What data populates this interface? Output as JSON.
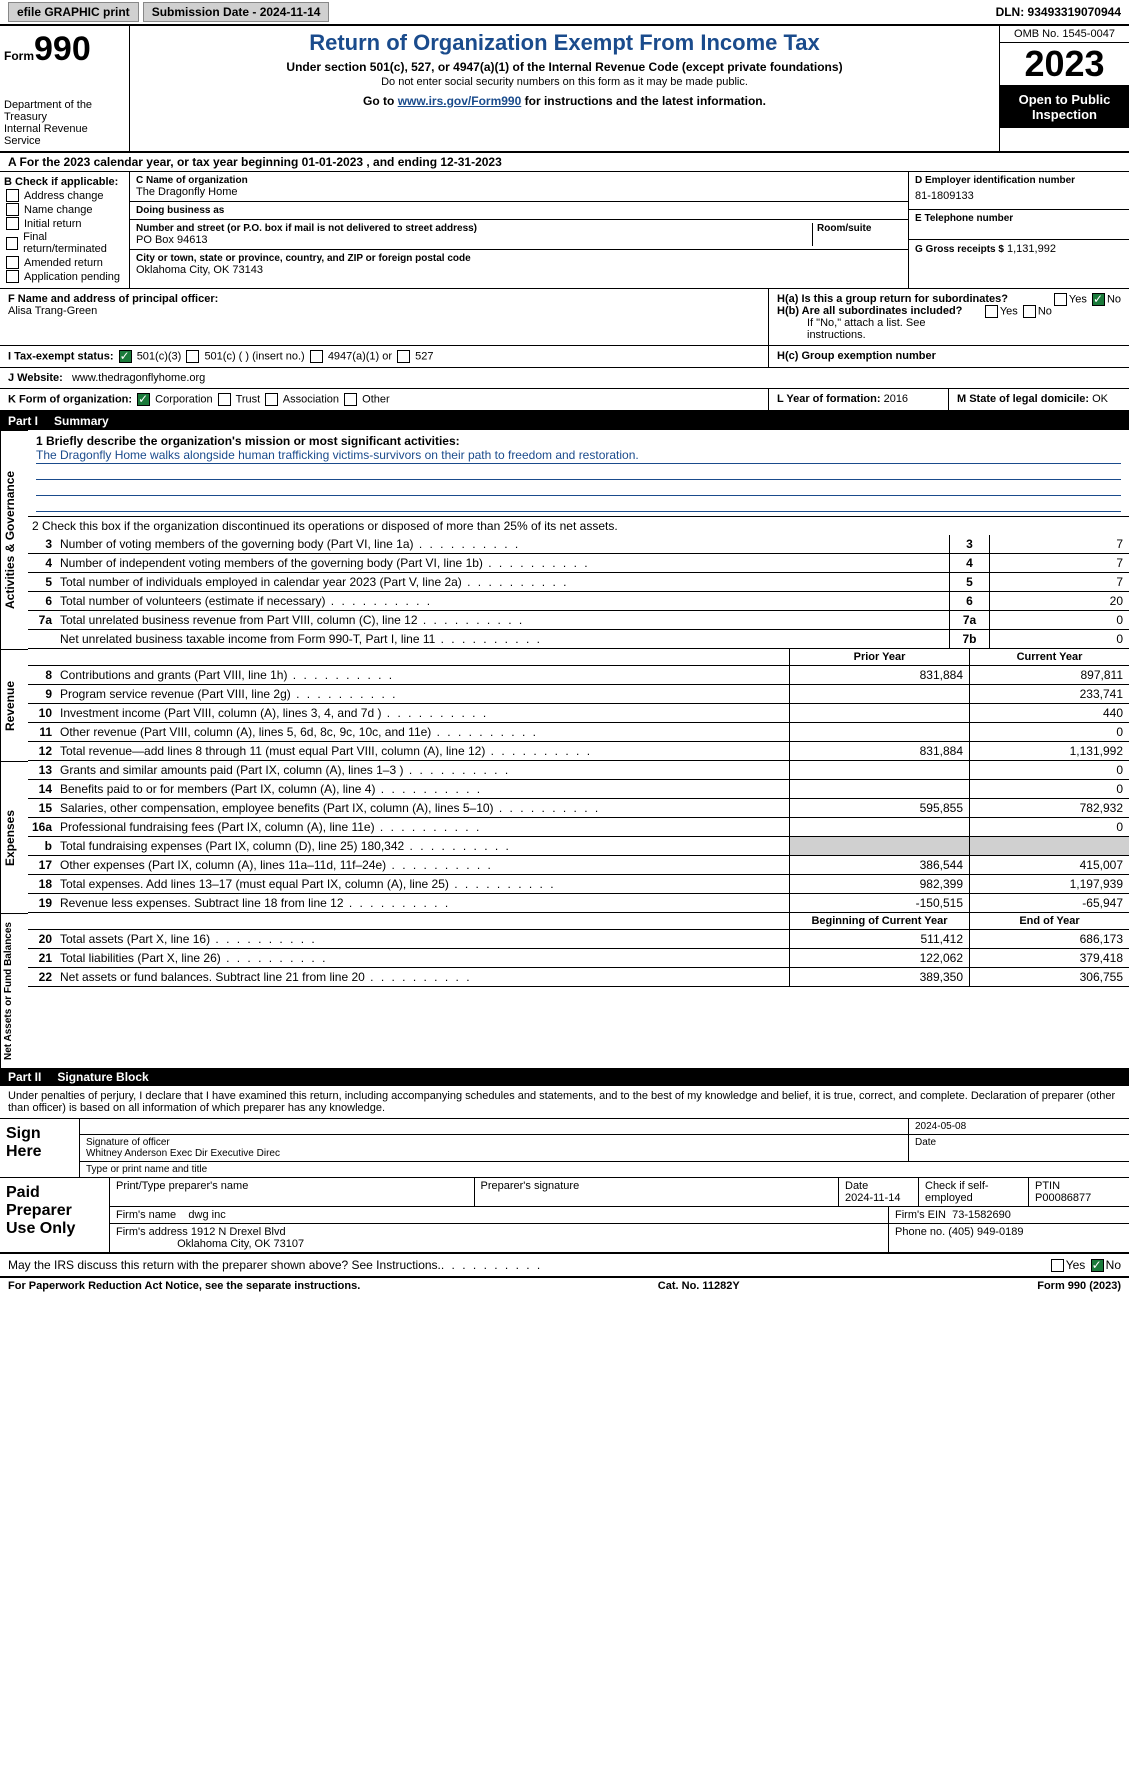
{
  "topbar": {
    "efile": "efile GRAPHIC print",
    "submission": "Submission Date - 2024-11-14",
    "dln": "DLN: 93493319070944"
  },
  "header": {
    "form_prefix": "Form",
    "form_number": "990",
    "dept": "Department of the Treasury\nInternal Revenue Service",
    "title": "Return of Organization Exempt From Income Tax",
    "subtitle": "Under section 501(c), 527, or 4947(a)(1) of the Internal Revenue Code (except private foundations)",
    "note": "Do not enter social security numbers on this form as it may be made public.",
    "goto_prefix": "Go to ",
    "goto_link": "www.irs.gov/Form990",
    "goto_suffix": " for instructions and the latest information.",
    "omb": "OMB No. 1545-0047",
    "year": "2023",
    "open": "Open to Public Inspection"
  },
  "section_a": {
    "text": "A  For the 2023 calendar year, or tax year beginning 01-01-2023    , and ending 12-31-2023"
  },
  "col_b": {
    "header": "B Check if applicable:",
    "items": [
      "Address change",
      "Name change",
      "Initial return",
      "Final return/terminated",
      "Amended return",
      "Application pending"
    ]
  },
  "col_c": {
    "name_lbl": "C Name of organization",
    "name": "The Dragonfly Home",
    "dba_lbl": "Doing business as",
    "dba": "",
    "street_lbl": "Number and street (or P.O. box if mail is not delivered to street address)",
    "room_lbl": "Room/suite",
    "street": "PO Box 94613",
    "city_lbl": "City or town, state or province, country, and ZIP or foreign postal code",
    "city": "Oklahoma City, OK   73143"
  },
  "col_d": {
    "ein_lbl": "D Employer identification number",
    "ein": "81-1809133",
    "phone_lbl": "E Telephone number",
    "phone": "",
    "gross_lbl": "G Gross receipts $",
    "gross": "1,131,992"
  },
  "block_f": {
    "lbl": "F  Name and address of principal officer:",
    "name": "Alisa Trang-Green"
  },
  "block_h": {
    "ha": "H(a)  Is this a group return for subordinates?",
    "hb": "H(b)  Are all subordinates included?",
    "hb_note": "If \"No,\" attach a list. See instructions.",
    "hc": "H(c)  Group exemption number",
    "yes": "Yes",
    "no": "No"
  },
  "tax_status": {
    "lbl": "I   Tax-exempt status:",
    "opts": [
      "501(c)(3)",
      "501(c) (  ) (insert no.)",
      "4947(a)(1) or",
      "527"
    ]
  },
  "website": {
    "lbl": "J   Website:",
    "val": "www.thedragonflyhome.org"
  },
  "form_org": {
    "lbl": "K Form of organization:",
    "opts": [
      "Corporation",
      "Trust",
      "Association",
      "Other"
    ]
  },
  "year_formation": {
    "lbl": "L Year of formation:",
    "val": "2016"
  },
  "state_dom": {
    "lbl": "M State of legal domicile:",
    "val": "OK"
  },
  "part1": {
    "label": "Part I",
    "title": "Summary"
  },
  "mission": {
    "lbl": "1   Briefly describe the organization's mission or most significant activities:",
    "text": "The Dragonfly Home walks alongside human trafficking victims-survivors on their path to freedom and restoration."
  },
  "line2": "2   Check this box          if the organization discontinued its operations or disposed of more than 25% of its net assets.",
  "gov_rows": [
    {
      "n": "3",
      "d": "Number of voting members of the governing body (Part VI, line 1a)",
      "box": "3",
      "v": "7"
    },
    {
      "n": "4",
      "d": "Number of independent voting members of the governing body (Part VI, line 1b)",
      "box": "4",
      "v": "7"
    },
    {
      "n": "5",
      "d": "Total number of individuals employed in calendar year 2023 (Part V, line 2a)",
      "box": "5",
      "v": "7"
    },
    {
      "n": "6",
      "d": "Total number of volunteers (estimate if necessary)",
      "box": "6",
      "v": "20"
    },
    {
      "n": "7a",
      "d": "Total unrelated business revenue from Part VIII, column (C), line 12",
      "box": "7a",
      "v": "0"
    },
    {
      "n": "",
      "d": "Net unrelated business taxable income from Form 990-T, Part I, line 11",
      "box": "7b",
      "v": "0"
    }
  ],
  "col_headers": {
    "prior": "Prior Year",
    "current": "Current Year"
  },
  "rev_rows": [
    {
      "n": "8",
      "d": "Contributions and grants (Part VIII, line 1h)",
      "p": "831,884",
      "c": "897,811"
    },
    {
      "n": "9",
      "d": "Program service revenue (Part VIII, line 2g)",
      "p": "",
      "c": "233,741"
    },
    {
      "n": "10",
      "d": "Investment income (Part VIII, column (A), lines 3, 4, and 7d )",
      "p": "",
      "c": "440"
    },
    {
      "n": "11",
      "d": "Other revenue (Part VIII, column (A), lines 5, 6d, 8c, 9c, 10c, and 11e)",
      "p": "",
      "c": "0"
    },
    {
      "n": "12",
      "d": "Total revenue—add lines 8 through 11 (must equal Part VIII, column (A), line 12)",
      "p": "831,884",
      "c": "1,131,992"
    }
  ],
  "exp_rows": [
    {
      "n": "13",
      "d": "Grants and similar amounts paid (Part IX, column (A), lines 1–3 )",
      "p": "",
      "c": "0"
    },
    {
      "n": "14",
      "d": "Benefits paid to or for members (Part IX, column (A), line 4)",
      "p": "",
      "c": "0"
    },
    {
      "n": "15",
      "d": "Salaries, other compensation, employee benefits (Part IX, column (A), lines 5–10)",
      "p": "595,855",
      "c": "782,932"
    },
    {
      "n": "16a",
      "d": "Professional fundraising fees (Part IX, column (A), line 11e)",
      "p": "",
      "c": "0"
    },
    {
      "n": "b",
      "d": "Total fundraising expenses (Part IX, column (D), line 25) 180,342",
      "p": "SHADED",
      "c": "SHADED"
    },
    {
      "n": "17",
      "d": "Other expenses (Part IX, column (A), lines 11a–11d, 11f–24e)",
      "p": "386,544",
      "c": "415,007"
    },
    {
      "n": "18",
      "d": "Total expenses. Add lines 13–17 (must equal Part IX, column (A), line 25)",
      "p": "982,399",
      "c": "1,197,939"
    },
    {
      "n": "19",
      "d": "Revenue less expenses. Subtract line 18 from line 12",
      "p": "-150,515",
      "c": "-65,947"
    }
  ],
  "net_headers": {
    "begin": "Beginning of Current Year",
    "end": "End of Year"
  },
  "net_rows": [
    {
      "n": "20",
      "d": "Total assets (Part X, line 16)",
      "p": "511,412",
      "c": "686,173"
    },
    {
      "n": "21",
      "d": "Total liabilities (Part X, line 26)",
      "p": "122,062",
      "c": "379,418"
    },
    {
      "n": "22",
      "d": "Net assets or fund balances. Subtract line 21 from line 20",
      "p": "389,350",
      "c": "306,755"
    }
  ],
  "part2": {
    "label": "Part II",
    "title": "Signature Block"
  },
  "sig_text": "Under penalties of perjury, I declare that I have examined this return, including accompanying schedules and statements, and to the best of my knowledge and belief, it is true, correct, and complete. Declaration of preparer (other than officer) is based on all information of which preparer has any knowledge.",
  "sign": {
    "lbl": "Sign Here",
    "sig_lbl": "Signature of officer",
    "date_lbl": "Date",
    "date": "2024-05-08",
    "name": "Whitney Anderson Exec Dir Executive Direc",
    "type_lbl": "Type or print name and title"
  },
  "prep": {
    "lbl": "Paid Preparer Use Only",
    "r1": {
      "name_lbl": "Print/Type preparer's name",
      "sig_lbl": "Preparer's signature",
      "date_lbl": "Date",
      "date": "2024-11-14",
      "chk_lbl": "Check          if self-employed",
      "ptin_lbl": "PTIN",
      "ptin": "P00086877"
    },
    "r2": {
      "firm_lbl": "Firm's name",
      "firm": "dwg inc",
      "ein_lbl": "Firm's EIN",
      "ein": "73-1582690"
    },
    "r3": {
      "addr_lbl": "Firm's address",
      "addr1": "1912 N Drexel Blvd",
      "addr2": "Oklahoma City, OK  73107",
      "phone_lbl": "Phone no.",
      "phone": "(405) 949-0189"
    }
  },
  "footer_q": "May the IRS discuss this return with the preparer shown above? See Instructions.",
  "footer": {
    "left": "For Paperwork Reduction Act Notice, see the separate instructions.",
    "mid": "Cat. No. 11282Y",
    "right": "Form 990 (2023)"
  },
  "sides": {
    "gov": "Activities & Governance",
    "rev": "Revenue",
    "exp": "Expenses",
    "net": "Net Assets or Fund Balances"
  }
}
